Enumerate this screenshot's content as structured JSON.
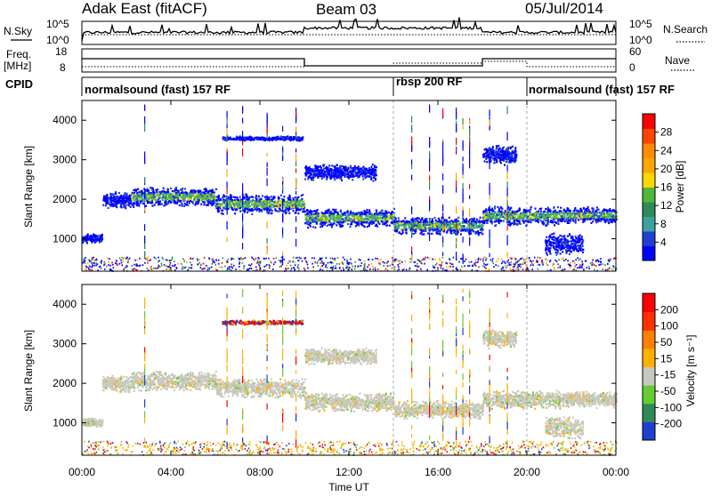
{
  "header": {
    "station": "Adak East (fitACF)",
    "beam": "Beam 03",
    "date": "05/Jul/2014"
  },
  "panels": {
    "nsky": {
      "label": "N.Sky",
      "tick_top": "10^5",
      "tick_bottom": "10^0",
      "right_label": "N.Search",
      "right_tick_top": "10^5",
      "right_tick_bottom": "10^0"
    },
    "freq": {
      "label_line1": "Freq.",
      "label_line2": "[MHz]",
      "tick_top": "18",
      "tick_bottom": "8",
      "right_label": "Nave",
      "right_tick_top": "60",
      "right_tick_bottom": "0"
    },
    "cpid": {
      "label": "CPID",
      "modes": [
        {
          "text": "normalsound (fast) 157 RF",
          "start_hour": 0,
          "end_hour": 14
        },
        {
          "text": "rbsp 200 RF",
          "start_hour": 14,
          "end_hour": 20
        },
        {
          "text": "normalsound (fast) 157 RF",
          "start_hour": 20,
          "end_hour": 24
        }
      ]
    }
  },
  "chart_data": [
    {
      "type": "heatmap",
      "name": "power",
      "ylabel": "Slant Range [km]",
      "ylim": [
        180,
        4500
      ],
      "yticks": [
        "1000",
        "2000",
        "3000",
        "4000"
      ],
      "ytick_values": [
        1000,
        2000,
        3000,
        4000
      ],
      "colorbar": {
        "label": "Power [dB]",
        "range": [
          0,
          32
        ],
        "ticks": [
          "4",
          "8",
          "12",
          "16",
          "20",
          "24",
          "28"
        ],
        "tick_values": [
          4,
          8,
          12,
          16,
          20,
          24,
          28
        ],
        "colors": [
          "#0000ff",
          "#1e3fcf",
          "#3aa3a0",
          "#2e8b57",
          "#4fb83a",
          "#ffd700",
          "#ffa500",
          "#ff8c00",
          "#ff4500",
          "#ff0000"
        ]
      }
    },
    {
      "type": "heatmap",
      "name": "velocity",
      "ylabel": "Slant Range [km]",
      "ylim": [
        180,
        4500
      ],
      "yticks": [
        "1000",
        "2000",
        "3000",
        "4000"
      ],
      "ytick_values": [
        1000,
        2000,
        3000,
        4000
      ],
      "colorbar": {
        "label": "Velocity [m s⁻¹]",
        "range": [
          -250,
          250
        ],
        "ticks": [
          "200",
          "100",
          "50",
          "15",
          "-15",
          "-50",
          "-100",
          "-200"
        ],
        "tick_values": [
          200,
          100,
          50,
          15,
          -15,
          -50,
          -100,
          -200
        ],
        "colors": [
          "#1e3fcf",
          "#2e8b57",
          "#66cc33",
          "#c8c8c0",
          "#ffb000",
          "#ff8000",
          "#ff3000",
          "#ff0000"
        ]
      }
    }
  ],
  "xaxis": {
    "label": "Time UT",
    "ticks": [
      "00:00",
      "04:00",
      "08:00",
      "12:00",
      "16:00",
      "20:00",
      "00:00"
    ],
    "tick_hours": [
      0,
      4,
      8,
      12,
      16,
      20,
      24
    ]
  },
  "scatter_bands": [
    {
      "start_hour": 0.0,
      "end_hour": 0.9,
      "center_km": 1030,
      "width_km": 120
    },
    {
      "start_hour": 0.9,
      "end_hour": 2.2,
      "center_km": 2000,
      "width_km": 220
    },
    {
      "start_hour": 2.2,
      "end_hour": 6.0,
      "center_km": 2080,
      "width_km": 260
    },
    {
      "start_hour": 6.0,
      "end_hour": 10.0,
      "center_km": 1900,
      "width_km": 260
    },
    {
      "start_hour": 10.0,
      "end_hour": 14.0,
      "center_km": 1550,
      "width_km": 250
    },
    {
      "start_hour": 14.0,
      "end_hour": 18.0,
      "center_km": 1350,
      "width_km": 240
    },
    {
      "start_hour": 18.0,
      "end_hour": 21.5,
      "center_km": 1600,
      "width_km": 260
    },
    {
      "start_hour": 21.5,
      "end_hour": 24.0,
      "center_km": 1620,
      "width_km": 220
    },
    {
      "start_hour": 6.3,
      "end_hour": 9.9,
      "center_km": 3560,
      "width_km": 60
    },
    {
      "start_hour": 10.0,
      "end_hour": 13.2,
      "center_km": 2700,
      "width_km": 220
    },
    {
      "start_hour": 18.0,
      "end_hour": 19.5,
      "center_km": 3150,
      "width_km": 260
    },
    {
      "start_hour": 20.8,
      "end_hour": 22.5,
      "center_km": 900,
      "width_km": 300
    }
  ]
}
